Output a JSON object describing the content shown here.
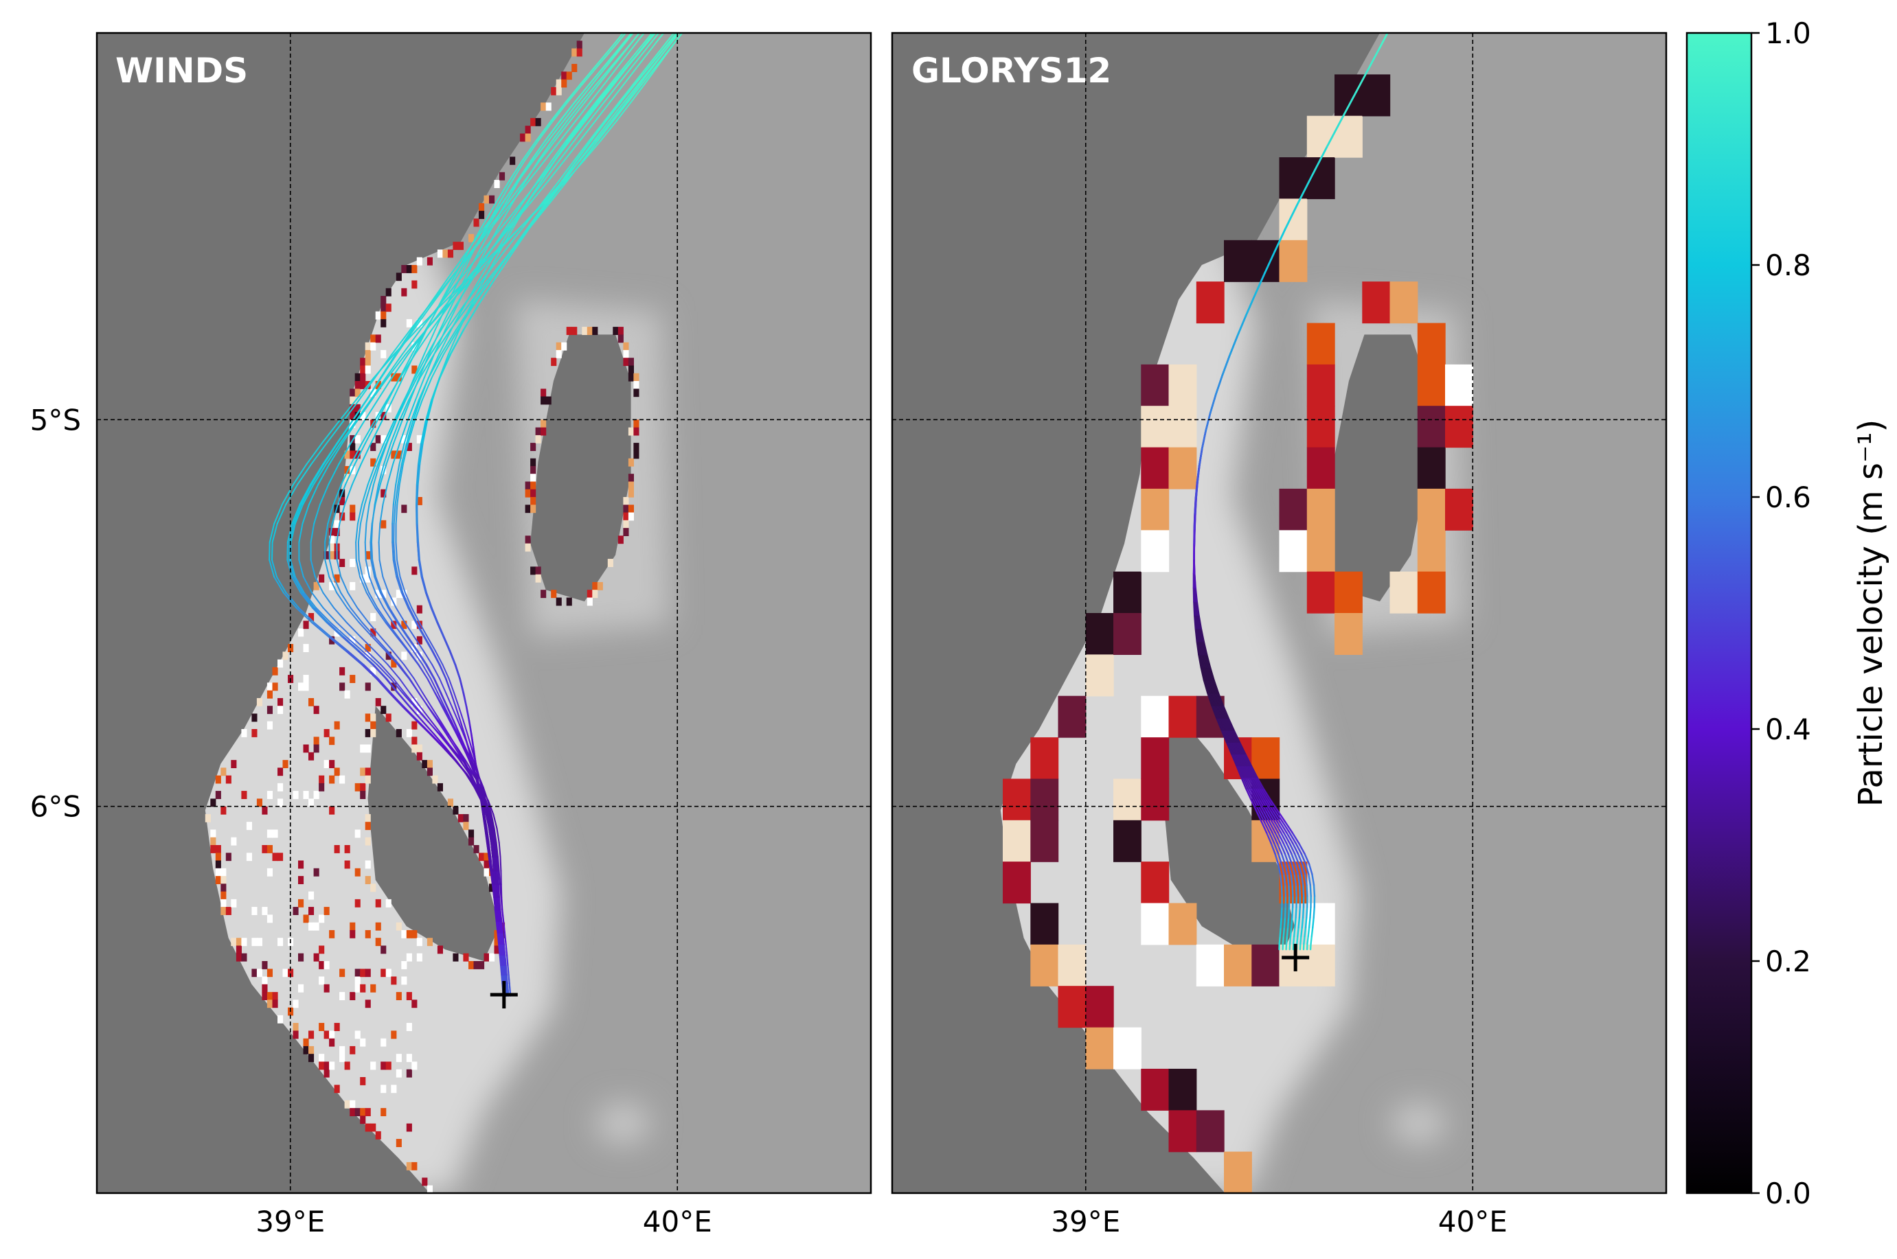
{
  "figure": {
    "panels": [
      {
        "label": "WINDS",
        "mesh": "fine"
      },
      {
        "label": "GLORYS12",
        "mesh": "coarse"
      }
    ],
    "x_ticks": [
      "39°E",
      "40°E"
    ],
    "y_ticks": [
      "5°S",
      "6°S"
    ],
    "extent": {
      "lon": [
        38.5,
        40.5
      ],
      "lat_top": 4.0,
      "lat_bottom": 7.0
    },
    "colorbar": {
      "label": "Particle velocity (m s⁻¹)",
      "ticks": [
        "0.0",
        "0.2",
        "0.4",
        "0.6",
        "0.8",
        "1.0"
      ],
      "range": [
        0.0,
        1.0
      ],
      "colormap": [
        "#000000",
        "#2a0f3d",
        "#5a10d0",
        "#3a7be0",
        "#10c8e0",
        "#4cf5c8"
      ]
    },
    "colors": {
      "land": "#737373",
      "ocean_deep": "#a0a0a0",
      "ocean_shallow": "#d8d8d8",
      "reef": [
        "#a50f2a",
        "#c81e22",
        "#6a1838",
        "#e0520f",
        "#e8a060",
        "#f2e0c8",
        "#ffffff",
        "#2a0f1e"
      ],
      "release_marker": "#000000"
    }
  }
}
